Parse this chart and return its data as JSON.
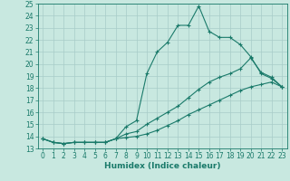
{
  "xlabel": "Humidex (Indice chaleur)",
  "bg_color": "#c8e8e0",
  "line_color": "#1a7a6a",
  "grid_color": "#a8ccc8",
  "xlim": [
    -0.5,
    23.5
  ],
  "ylim": [
    13,
    25
  ],
  "xticks": [
    0,
    1,
    2,
    3,
    4,
    5,
    6,
    7,
    8,
    9,
    10,
    11,
    12,
    13,
    14,
    15,
    16,
    17,
    18,
    19,
    20,
    21,
    22,
    23
  ],
  "yticks": [
    13,
    14,
    15,
    16,
    17,
    18,
    19,
    20,
    21,
    22,
    23,
    24,
    25
  ],
  "line1_x": [
    0,
    1,
    2,
    3,
    4,
    5,
    6,
    7,
    8,
    9,
    10,
    11,
    12,
    13,
    14,
    15,
    16,
    17,
    18,
    19,
    20,
    21,
    22,
    23
  ],
  "line1_y": [
    13.8,
    13.5,
    13.4,
    13.5,
    13.5,
    13.5,
    13.5,
    13.8,
    14.8,
    15.3,
    19.2,
    21.0,
    21.8,
    23.2,
    23.2,
    24.8,
    22.7,
    22.2,
    22.2,
    21.6,
    20.6,
    19.2,
    18.8,
    18.1
  ],
  "line2_x": [
    0,
    1,
    2,
    3,
    4,
    5,
    6,
    7,
    8,
    9,
    10,
    11,
    12,
    13,
    14,
    15,
    16,
    17,
    18,
    19,
    20,
    21,
    22,
    23
  ],
  "line2_y": [
    13.8,
    13.5,
    13.4,
    13.5,
    13.5,
    13.5,
    13.5,
    13.8,
    14.2,
    14.4,
    15.0,
    15.5,
    16.0,
    16.5,
    17.2,
    17.9,
    18.5,
    18.9,
    19.2,
    19.6,
    20.5,
    19.3,
    18.9,
    18.1
  ],
  "line3_x": [
    0,
    1,
    2,
    3,
    4,
    5,
    6,
    7,
    8,
    9,
    10,
    11,
    12,
    13,
    14,
    15,
    16,
    17,
    18,
    19,
    20,
    21,
    22,
    23
  ],
  "line3_y": [
    13.8,
    13.5,
    13.4,
    13.5,
    13.5,
    13.5,
    13.5,
    13.8,
    13.9,
    14.0,
    14.2,
    14.5,
    14.9,
    15.3,
    15.8,
    16.2,
    16.6,
    17.0,
    17.4,
    17.8,
    18.1,
    18.3,
    18.5,
    18.1
  ],
  "tick_fontsize": 5.5,
  "xlabel_fontsize": 6.5
}
